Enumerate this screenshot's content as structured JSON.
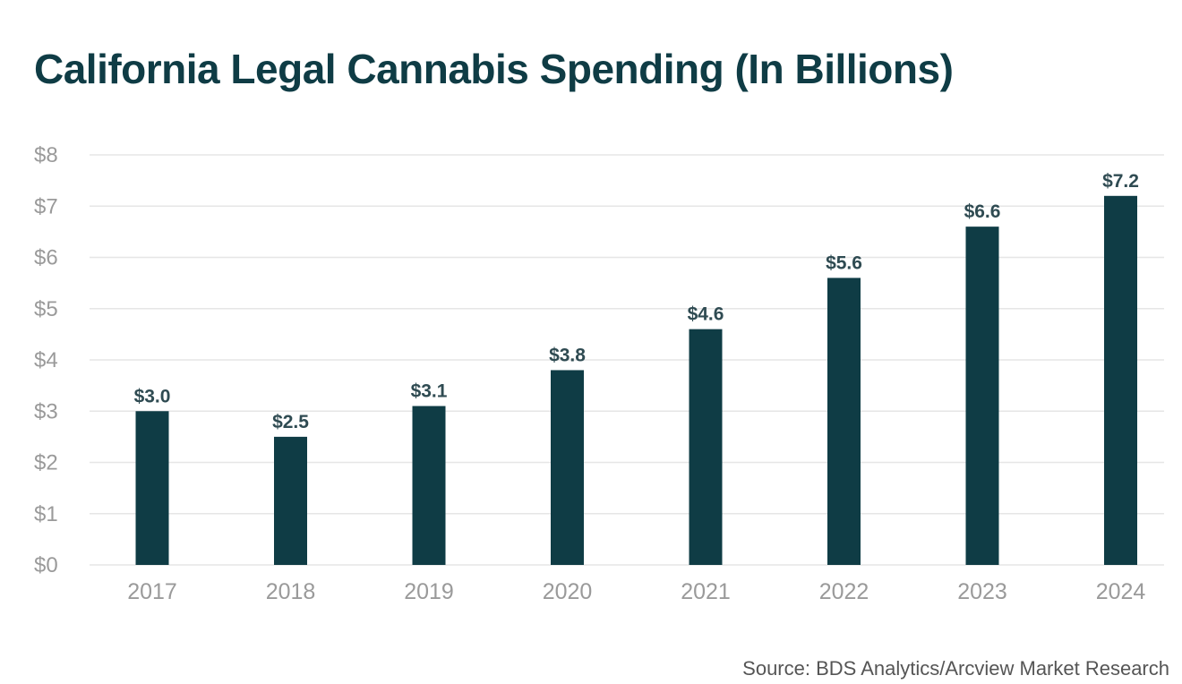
{
  "chart_data": {
    "type": "bar",
    "title": "California Legal Cannabis Spending (In Billions)",
    "categories": [
      "2017",
      "2018",
      "2019",
      "2020",
      "2021",
      "2022",
      "2023",
      "2024"
    ],
    "values": [
      3.0,
      2.5,
      3.1,
      3.8,
      4.6,
      5.6,
      6.6,
      7.2
    ],
    "data_labels": [
      "$3.0",
      "$2.5",
      "$3.1",
      "$3.8",
      "$4.6",
      "$5.6",
      "$6.6",
      "$7.2"
    ],
    "y_ticks": [
      0,
      1,
      2,
      3,
      4,
      5,
      6,
      7,
      8
    ],
    "y_tick_labels": [
      "$0",
      "$1",
      "$2",
      "$3",
      "$4",
      "$5",
      "$6",
      "$7",
      "$8"
    ],
    "xlabel": "",
    "ylabel": "",
    "ylim": [
      0,
      8
    ],
    "grid": true,
    "legend": "none",
    "bar_color": "#0f3c45",
    "source": "Source: BDS Analytics/Arcview Market Research"
  }
}
